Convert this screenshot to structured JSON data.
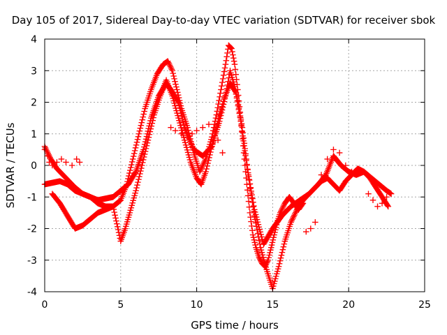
{
  "chart_data": {
    "type": "scatter",
    "title": "Day 105 of 2017, Sidereal Day-to-day VTEC variation (SDTVAR) for receiver sbok",
    "xlabel": "GPS time / hours",
    "ylabel": "SDTVAR / TECUs",
    "xlim": [
      0,
      25
    ],
    "ylim": [
      -4,
      4
    ],
    "x_ticks": [
      0,
      5,
      10,
      15,
      20,
      25
    ],
    "x_tick_labels": [
      "0",
      "5",
      "10",
      "15",
      "20",
      "25"
    ],
    "y_ticks": [
      -4,
      -3,
      -2,
      -1,
      0,
      1,
      2,
      3,
      4
    ],
    "y_tick_labels": [
      "-4",
      "-3",
      "-2",
      "-1",
      "0",
      "1",
      "2",
      "3",
      "4"
    ],
    "grid": true,
    "marker": "plus",
    "color": "#ff0000",
    "series": [
      {
        "name": "main track",
        "x": [
          0.0,
          0.5,
          1.0,
          1.5,
          2.0,
          2.5,
          3.0,
          3.5,
          4.0,
          4.5,
          5.0,
          5.5,
          6.0,
          6.5,
          7.0,
          7.5,
          8.0,
          8.3,
          8.8,
          9.2,
          9.8,
          10.4,
          11.0,
          11.5,
          11.9,
          12.2,
          12.5,
          12.9,
          13.3,
          13.8,
          14.4,
          15.0,
          15.6,
          16.2,
          16.8,
          17.4,
          18.0,
          18.5,
          19.0,
          19.5,
          20.0,
          20.5,
          21.0,
          21.5,
          22.0,
          22.5,
          22.8
        ],
        "y": [
          -0.6,
          -0.55,
          -0.5,
          -0.6,
          -0.8,
          -0.9,
          -1.0,
          -1.1,
          -1.05,
          -1.0,
          -0.8,
          -0.6,
          -0.2,
          0.5,
          1.5,
          2.2,
          2.6,
          2.4,
          2.0,
          1.2,
          0.5,
          0.3,
          0.6,
          1.4,
          2.2,
          3.0,
          2.5,
          1.4,
          0.0,
          -1.4,
          -2.5,
          -2.0,
          -1.6,
          -1.3,
          -1.1,
          -0.9,
          -0.6,
          -0.3,
          0.3,
          0.0,
          -0.2,
          -0.3,
          -0.2,
          -0.4,
          -0.6,
          -0.8,
          -0.9
        ]
      },
      {
        "name": "upper track",
        "x": [
          0.0,
          0.4,
          0.8,
          1.2,
          1.6,
          2.0,
          2.5,
          3.0,
          3.5,
          4.0,
          4.5,
          5.0,
          5.4,
          5.8,
          6.2,
          6.6,
          7.0,
          7.4,
          7.8,
          8.1,
          8.4,
          8.7,
          9.0,
          9.4,
          9.8,
          10.2,
          10.6,
          11.0,
          11.3,
          11.6,
          11.9,
          12.1,
          12.3,
          12.5,
          12.7,
          12.9,
          13.1,
          13.3,
          13.5,
          13.7,
          13.9,
          14.1,
          14.3,
          14.5,
          14.7,
          14.9,
          15.1,
          15.3,
          15.5,
          15.8,
          16.1,
          16.4,
          16.7,
          17.0
        ],
        "y": [
          0.6,
          0.2,
          -0.1,
          -0.3,
          -0.5,
          -0.7,
          -0.9,
          -1.0,
          -1.2,
          -1.3,
          -1.3,
          -1.1,
          -0.6,
          0.2,
          1.0,
          1.8,
          2.4,
          2.9,
          3.2,
          3.3,
          3.0,
          2.4,
          1.8,
          1.2,
          0.4,
          -0.2,
          0.2,
          0.9,
          1.6,
          2.4,
          3.2,
          3.8,
          3.7,
          3.2,
          2.4,
          1.5,
          0.4,
          -0.6,
          -1.5,
          -2.2,
          -2.6,
          -2.9,
          -3.1,
          -3.2,
          -3.0,
          -2.6,
          -2.2,
          -1.8,
          -1.5,
          -1.2,
          -1.0,
          -1.2,
          -1.4,
          -1.2
        ]
      },
      {
        "name": "lower track",
        "x": [
          0.5,
          1.0,
          1.5,
          2.0,
          2.5,
          3.0,
          3.5,
          4.0,
          4.5,
          5.0,
          5.3,
          5.6,
          6.0,
          6.4,
          6.8,
          7.2,
          7.6,
          8.0,
          8.4,
          8.8,
          9.2,
          9.6,
          10.0,
          10.3,
          10.6,
          11.0,
          11.4,
          11.8,
          12.2,
          12.6,
          13.0,
          13.4,
          13.8,
          14.2,
          14.6,
          15.0,
          15.4,
          15.8,
          16.2,
          16.6,
          17.0,
          17.4,
          17.8,
          18.2,
          18.6,
          19.0,
          19.4,
          19.8,
          20.2,
          20.6,
          21.0,
          21.4,
          21.8,
          22.2,
          22.6
        ],
        "y": [
          -0.9,
          -1.2,
          -1.6,
          -2.0,
          -1.9,
          -1.7,
          -1.5,
          -1.4,
          -1.3,
          -2.4,
          -2.0,
          -1.5,
          -0.8,
          0.0,
          0.8,
          1.6,
          2.2,
          2.7,
          2.2,
          1.5,
          0.8,
          0.1,
          -0.4,
          -0.6,
          -0.2,
          0.6,
          1.4,
          2.1,
          2.6,
          2.3,
          1.2,
          -0.3,
          -1.6,
          -2.6,
          -3.3,
          -3.9,
          -3.2,
          -2.4,
          -1.8,
          -1.4,
          -1.1,
          -0.9,
          -0.7,
          -0.5,
          -0.4,
          -0.6,
          -0.8,
          -0.5,
          -0.3,
          -0.1,
          -0.2,
          -0.4,
          -0.7,
          -1.0,
          -1.3
        ]
      },
      {
        "name": "scattered segments",
        "x": [
          0.0,
          0.2,
          0.3,
          0.5,
          0.8,
          1.1,
          1.4,
          1.8,
          2.1,
          2.3,
          8.3,
          8.6,
          9.0,
          9.4,
          9.7,
          10.0,
          10.4,
          10.8,
          11.2,
          11.4,
          11.7,
          17.2,
          17.5,
          17.8,
          18.2,
          18.6,
          19.0,
          19.4,
          19.8,
          20.2,
          21.3,
          21.6,
          21.9,
          22.2,
          22.5
        ],
        "y": [
          0.5,
          0.3,
          0.1,
          0.0,
          0.1,
          0.2,
          0.1,
          0.0,
          0.2,
          0.1,
          1.2,
          1.1,
          1.0,
          0.9,
          1.0,
          1.1,
          1.2,
          1.3,
          1.2,
          0.8,
          0.4,
          -2.1,
          -2.0,
          -1.8,
          -0.3,
          0.2,
          0.5,
          0.4,
          0.0,
          -0.2,
          -0.9,
          -1.1,
          -1.3,
          -1.2,
          -1.0
        ]
      }
    ]
  }
}
